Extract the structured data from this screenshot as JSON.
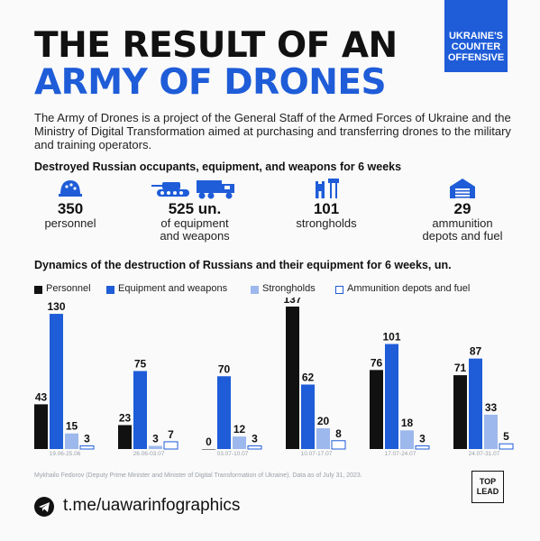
{
  "badge": {
    "line1": "UKRAINE'S",
    "line2": "COUNTER",
    "line3": "OFFENSIVE"
  },
  "title": {
    "line1": "THE RESULT OF AN",
    "line2": "ARMY OF DRONES"
  },
  "intro": "The Army of Drones is a project of the General Staff of the Armed Forces of Ukraine and the Ministry of Digital Transformation aimed at purchasing and transferring drones to the military and training operators.",
  "summary": {
    "heading": "Destroyed Russian occupants, equipment, and weapons for 6 weeks",
    "stats": [
      {
        "icon": "helmet-icon",
        "value": "350",
        "label1": "personnel",
        "label2": ""
      },
      {
        "icon": "tank-truck-icon",
        "value": "525 un.",
        "label1": "of equipment",
        "label2": "and weapons"
      },
      {
        "icon": "stronghold-tower-icon",
        "value": "101",
        "label1": "strongholds",
        "label2": ""
      },
      {
        "icon": "warehouse-icon",
        "value": "29",
        "label1": "ammunition",
        "label2": "depots and fuel"
      }
    ]
  },
  "dynamics_heading": "Dynamics of the destruction of Russians and their equipment for 6 weeks, un.",
  "legend": [
    {
      "label": "Personnel",
      "color": "#111111",
      "outline": false
    },
    {
      "label": "Equipment and weapons",
      "color": "#1e5cd8",
      "outline": false
    },
    {
      "label": "Strongholds",
      "color": "#9db8ec",
      "outline": false
    },
    {
      "label": "Ammunition depots and fuel",
      "color": "#ffffff",
      "outline": true
    }
  ],
  "chart_data": {
    "type": "bar",
    "categories": [
      "19.06-25.06",
      "26.06-03.07",
      "03.07-10.07",
      "10.07-17.07",
      "17.07-24.07",
      "24.07-31.07"
    ],
    "series": [
      {
        "name": "Personnel",
        "color": "#111111",
        "values": [
          43,
          23,
          0,
          137,
          76,
          71
        ]
      },
      {
        "name": "Equipment and weapons",
        "color": "#1e5cd8",
        "values": [
          130,
          75,
          70,
          62,
          101,
          87
        ]
      },
      {
        "name": "Strongholds",
        "color": "#9db8ec",
        "values": [
          15,
          3,
          12,
          20,
          18,
          33
        ]
      },
      {
        "name": "Ammunition depots and fuel",
        "color": "#ffffff",
        "values": [
          3,
          7,
          3,
          8,
          3,
          5
        ]
      }
    ],
    "ylim": [
      0,
      137
    ]
  },
  "source": "Mykhailo Fedorov (Deputy Prime Minister and Minister of Digital Transformation of Ukraine). Data as of July 31, 2023.",
  "logo": {
    "line1": "TOP",
    "line2": "LEAD"
  },
  "footer": {
    "link": "t.me/uawarinfographics"
  }
}
